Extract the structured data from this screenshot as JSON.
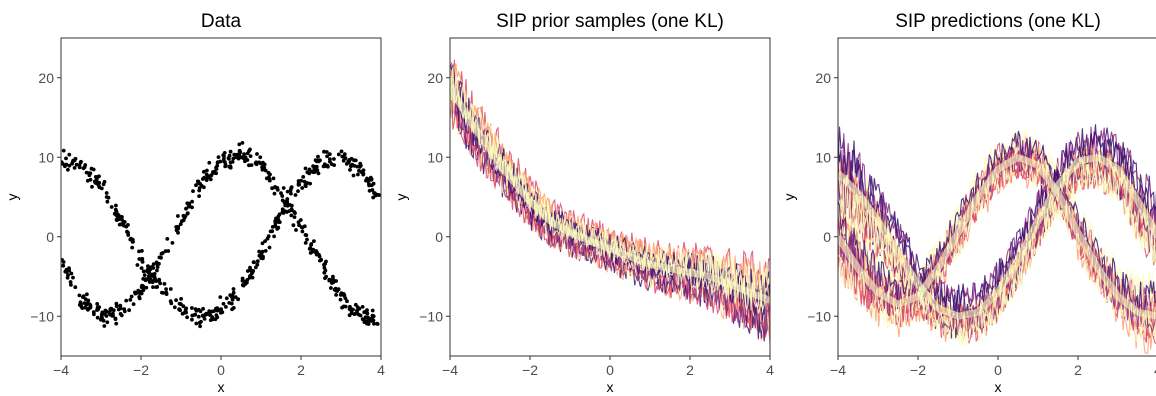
{
  "chart_data": [
    {
      "type": "scatter",
      "title": "Data",
      "xlabel": "x",
      "ylabel": "y",
      "xlim": [
        -4,
        4
      ],
      "ylim": [
        -15,
        25
      ],
      "xticks": [
        "−4",
        "−2",
        "0",
        "2",
        "4"
      ],
      "yticks": [
        "−10",
        "0",
        "10",
        "20"
      ],
      "point_color": "#000000",
      "series": [
        {
          "x": [
            -4,
            -3.5,
            -3,
            -2.5,
            -2,
            -1.5,
            -1,
            -0.5,
            0,
            0.5,
            1,
            1.5,
            2,
            2.5,
            3,
            3.5,
            4
          ],
          "y": [
            10,
            9,
            6.5,
            2,
            -3,
            -6.5,
            -9,
            -10,
            -9,
            -6.5,
            -2.5,
            3,
            7,
            9.5,
            10,
            8.5,
            4
          ]
        },
        {
          "x": [
            -4,
            -3.5,
            -3,
            -2.5,
            -2,
            -1.5,
            -1,
            -0.5,
            0,
            0.5,
            1,
            1.5,
            2,
            2.5,
            3,
            3.5,
            4
          ],
          "y": [
            -3,
            -8,
            -10,
            -9.5,
            -7,
            -2.5,
            2,
            6.5,
            9.5,
            10.5,
            9,
            5.5,
            1,
            -3.5,
            -7.5,
            -10,
            -10.5
          ]
        }
      ]
    },
    {
      "type": "line",
      "title": "SIP prior samples (one KL)",
      "xlabel": "x",
      "ylabel": "y",
      "xlim": [
        -4,
        4
      ],
      "ylim": [
        -15,
        25
      ],
      "xticks": [
        "−4",
        "−2",
        "0",
        "2",
        "4"
      ],
      "yticks": [
        "−10",
        "0",
        "10",
        "20"
      ],
      "band_colors": [
        "#3b0f70",
        "#8c2981",
        "#de4968",
        "#fe9f6d",
        "#fcfdbf"
      ],
      "band": {
        "x": [
          -4,
          -3.5,
          -3,
          -2.5,
          -2,
          -1.5,
          -1,
          -0.5,
          0,
          0.5,
          1,
          1.5,
          2,
          2.5,
          3,
          3.5,
          4
        ],
        "center": [
          19,
          14.5,
          11,
          7.5,
          4.5,
          2,
          0.5,
          -0.5,
          -1.5,
          -2.5,
          -3.5,
          -4,
          -4.5,
          -5,
          -6,
          -7,
          -8
        ],
        "halfwidth": [
          4,
          3.8,
          3.4,
          3,
          2.8,
          2.6,
          2.5,
          2.5,
          2.5,
          2.6,
          2.7,
          2.9,
          3.1,
          3.4,
          3.8,
          4.2,
          4.6
        ]
      }
    },
    {
      "type": "line",
      "title": "SIP predictions (one KL)",
      "xlabel": "x",
      "ylabel": "y",
      "xlim": [
        -4,
        4
      ],
      "ylim": [
        -15,
        25
      ],
      "xticks": [
        "−4",
        "−2",
        "0",
        "2",
        "4"
      ],
      "yticks": [
        "−10",
        "0",
        "10",
        "20"
      ],
      "band_colors": [
        "#3b0f70",
        "#8c2981",
        "#de4968",
        "#fe9f6d",
        "#fcfdbf"
      ],
      "bands": [
        {
          "x": [
            -4,
            -3.5,
            -3,
            -2.5,
            -2,
            -1.5,
            -1,
            -0.5,
            0,
            0.5,
            1,
            1.5,
            2,
            2.5,
            3,
            3.5,
            4
          ],
          "center": [
            8,
            5.5,
            2,
            -2,
            -6,
            -9,
            -10,
            -9.5,
            -7,
            -3,
            2,
            6.5,
            9.5,
            10,
            8.5,
            4.5,
            0
          ],
          "halfwidth": [
            5,
            4.5,
            4,
            3.5,
            3,
            3,
            3,
            3,
            3,
            3,
            3,
            3,
            3,
            3.2,
            3.5,
            4,
            4.5
          ]
        },
        {
          "x": [
            -4,
            -3.5,
            -3,
            -2.5,
            -2,
            -1.5,
            -1,
            -0.5,
            0,
            0.5,
            1,
            1.5,
            2,
            2.5,
            3,
            3.5,
            4
          ],
          "center": [
            0,
            -4,
            -7,
            -8.5,
            -7.5,
            -4,
            0.5,
            5,
            8.5,
            10,
            9,
            5.5,
            0.5,
            -4,
            -7.5,
            -9.5,
            -10
          ],
          "halfwidth": [
            5,
            4.5,
            4,
            3.5,
            3,
            3,
            3,
            3,
            3,
            3,
            3,
            3,
            3,
            3.2,
            3.5,
            4,
            4.5
          ]
        }
      ]
    }
  ]
}
